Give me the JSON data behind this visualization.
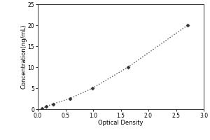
{
  "x_data": [
    0.076,
    0.152,
    0.273,
    0.576,
    0.989,
    1.63,
    2.71
  ],
  "y_data": [
    0.156,
    0.625,
    1.25,
    2.5,
    5.0,
    10.0,
    20.0
  ],
  "xlabel": "Optical Density",
  "ylabel": "Concentration(ng/mL)",
  "xlim": [
    0,
    3
  ],
  "ylim": [
    0,
    25
  ],
  "xticks": [
    0,
    0.5,
    1,
    1.5,
    2,
    2.5,
    3
  ],
  "yticks": [
    0,
    5,
    10,
    15,
    20,
    25
  ],
  "line_color": "#555555",
  "marker_color": "#333333",
  "line_style": "dotted",
  "marker_style": "D",
  "marker_size": 2.5,
  "line_width": 1.0,
  "background_color": "#ffffff",
  "axis_fontsize": 6,
  "tick_fontsize": 5.5
}
